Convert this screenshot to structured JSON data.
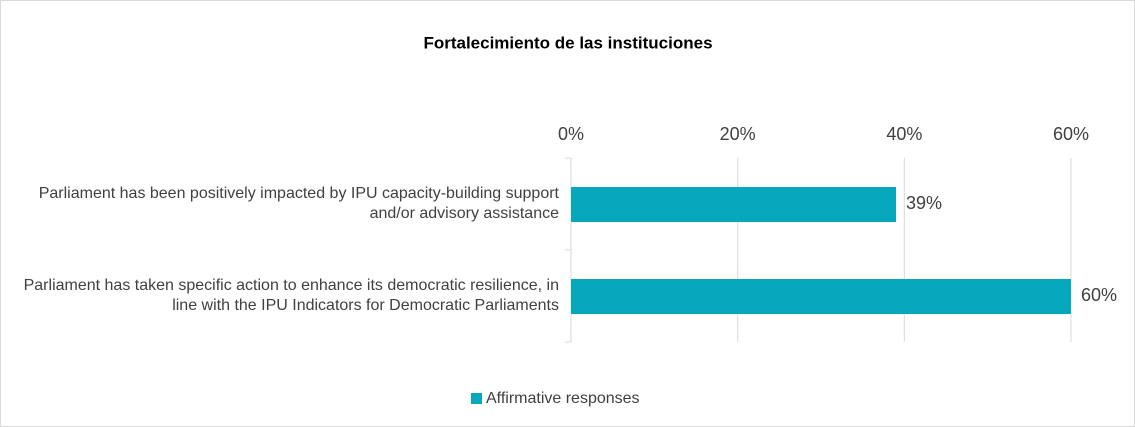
{
  "chart_data": {
    "type": "bar",
    "orientation": "horizontal",
    "title": "Fortalecimiento de las instituciones",
    "categories": [
      "Parliament has been positively impacted by IPU capacity-building support and/or advisory assistance",
      "Parliament has taken specific action to enhance its democratic resilience, in line with the IPU Indicators for Democratic Parliaments"
    ],
    "series": [
      {
        "name": "Affirmative responses",
        "color": "#07a8bc",
        "values": [
          39,
          60
        ],
        "value_labels": [
          "39%",
          "60%"
        ]
      }
    ],
    "xlim": [
      0,
      60
    ],
    "xticks": [
      {
        "value": 0,
        "label": "0%"
      },
      {
        "value": 20,
        "label": "20%"
      },
      {
        "value": 40,
        "label": "40%"
      },
      {
        "value": 60,
        "label": "60%"
      }
    ],
    "grid": true,
    "legend": "bottom"
  }
}
